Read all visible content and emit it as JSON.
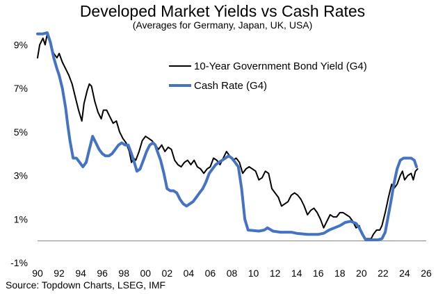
{
  "chart_data": {
    "type": "line",
    "title": "Developed Market Yields vs Cash Rates",
    "subtitle": "(Averages for Germany, Japan, UK, USA)",
    "source": "Source: Topdown Charts, LSEG, IMF",
    "xlabel": "",
    "ylabel": "",
    "xlim": [
      1990,
      2026
    ],
    "ylim": [
      -1,
      10
    ],
    "y_ticks": [
      {
        "value": -1,
        "label": "-1%"
      },
      {
        "value": 1,
        "label": "1%"
      },
      {
        "value": 3,
        "label": "3%"
      },
      {
        "value": 5,
        "label": "5%"
      },
      {
        "value": 7,
        "label": "7%"
      },
      {
        "value": 9,
        "label": "9%"
      }
    ],
    "x_ticks": [
      {
        "value": 1990,
        "label": "90"
      },
      {
        "value": 1992,
        "label": "92"
      },
      {
        "value": 1994,
        "label": "94"
      },
      {
        "value": 1996,
        "label": "96"
      },
      {
        "value": 1998,
        "label": "98"
      },
      {
        "value": 2000,
        "label": "00"
      },
      {
        "value": 2002,
        "label": "02"
      },
      {
        "value": 2004,
        "label": "04"
      },
      {
        "value": 2006,
        "label": "06"
      },
      {
        "value": 2008,
        "label": "08"
      },
      {
        "value": 2010,
        "label": "10"
      },
      {
        "value": 2012,
        "label": "12"
      },
      {
        "value": 2014,
        "label": "14"
      },
      {
        "value": 2016,
        "label": "16"
      },
      {
        "value": 2018,
        "label": "18"
      },
      {
        "value": 2020,
        "label": "20"
      },
      {
        "value": 2022,
        "label": "22"
      },
      {
        "value": 2024,
        "label": "24"
      },
      {
        "value": 2026,
        "label": "26"
      }
    ],
    "x_axis_at": 0,
    "legend_position": "upper-center",
    "series": [
      {
        "name": "10-Year Government Bond Yield (G4)",
        "color": "#000000",
        "width": 2,
        "points": [
          [
            1990.0,
            8.4
          ],
          [
            1990.2,
            9.0
          ],
          [
            1990.5,
            9.3
          ],
          [
            1990.7,
            9.0
          ],
          [
            1990.9,
            9.5
          ],
          [
            1991.2,
            9.0
          ],
          [
            1991.5,
            8.6
          ],
          [
            1991.8,
            8.4
          ],
          [
            1992.0,
            8.6
          ],
          [
            1992.3,
            8.2
          ],
          [
            1992.6,
            7.9
          ],
          [
            1992.9,
            7.6
          ],
          [
            1993.2,
            7.2
          ],
          [
            1993.5,
            6.6
          ],
          [
            1993.8,
            6.0
          ],
          [
            1994.1,
            5.5
          ],
          [
            1994.3,
            6.3
          ],
          [
            1994.6,
            6.9
          ],
          [
            1994.8,
            7.2
          ],
          [
            1995.0,
            7.1
          ],
          [
            1995.3,
            6.4
          ],
          [
            1995.6,
            5.9
          ],
          [
            1995.9,
            5.6
          ],
          [
            1996.1,
            6.0
          ],
          [
            1996.4,
            6.0
          ],
          [
            1996.7,
            5.7
          ],
          [
            1997.0,
            5.4
          ],
          [
            1997.3,
            5.5
          ],
          [
            1997.6,
            5.0
          ],
          [
            1997.9,
            4.7
          ],
          [
            1998.2,
            4.5
          ],
          [
            1998.5,
            4.1
          ],
          [
            1998.7,
            3.6
          ],
          [
            1998.9,
            3.8
          ],
          [
            1999.1,
            3.7
          ],
          [
            1999.4,
            4.1
          ],
          [
            1999.7,
            4.6
          ],
          [
            2000.0,
            4.8
          ],
          [
            2000.3,
            4.7
          ],
          [
            2000.6,
            4.6
          ],
          [
            2000.9,
            4.4
          ],
          [
            2001.2,
            4.2
          ],
          [
            2001.5,
            4.4
          ],
          [
            2001.8,
            4.1
          ],
          [
            2002.1,
            4.3
          ],
          [
            2002.4,
            4.2
          ],
          [
            2002.7,
            3.7
          ],
          [
            2003.0,
            3.5
          ],
          [
            2003.3,
            3.4
          ],
          [
            2003.6,
            3.6
          ],
          [
            2003.9,
            3.7
          ],
          [
            2004.2,
            3.5
          ],
          [
            2004.5,
            3.7
          ],
          [
            2004.8,
            3.4
          ],
          [
            2005.1,
            3.3
          ],
          [
            2005.4,
            3.1
          ],
          [
            2005.7,
            3.3
          ],
          [
            2006.0,
            3.4
          ],
          [
            2006.3,
            3.8
          ],
          [
            2006.6,
            3.7
          ],
          [
            2006.9,
            3.5
          ],
          [
            2007.2,
            3.8
          ],
          [
            2007.5,
            4.1
          ],
          [
            2007.8,
            3.9
          ],
          [
            2008.1,
            3.7
          ],
          [
            2008.4,
            3.8
          ],
          [
            2008.7,
            3.6
          ],
          [
            2009.0,
            3.1
          ],
          [
            2009.3,
            3.3
          ],
          [
            2009.6,
            3.4
          ],
          [
            2009.9,
            3.3
          ],
          [
            2010.2,
            3.2
          ],
          [
            2010.5,
            2.8
          ],
          [
            2010.8,
            2.9
          ],
          [
            2011.1,
            3.2
          ],
          [
            2011.4,
            3.1
          ],
          [
            2011.7,
            2.4
          ],
          [
            2012.0,
            2.2
          ],
          [
            2012.3,
            2.0
          ],
          [
            2012.6,
            1.6
          ],
          [
            2012.9,
            1.7
          ],
          [
            2013.2,
            1.8
          ],
          [
            2013.5,
            2.1
          ],
          [
            2013.8,
            2.2
          ],
          [
            2014.1,
            2.1
          ],
          [
            2014.4,
            1.9
          ],
          [
            2014.7,
            1.6
          ],
          [
            2015.0,
            1.2
          ],
          [
            2015.3,
            1.4
          ],
          [
            2015.6,
            1.5
          ],
          [
            2015.9,
            1.3
          ],
          [
            2016.2,
            1.0
          ],
          [
            2016.5,
            0.6
          ],
          [
            2016.8,
            0.9
          ],
          [
            2017.1,
            1.2
          ],
          [
            2017.4,
            1.1
          ],
          [
            2017.7,
            1.1
          ],
          [
            2018.0,
            1.3
          ],
          [
            2018.3,
            1.3
          ],
          [
            2018.6,
            1.2
          ],
          [
            2018.9,
            1.1
          ],
          [
            2019.2,
            0.9
          ],
          [
            2019.5,
            0.6
          ],
          [
            2019.8,
            0.7
          ],
          [
            2020.0,
            0.4
          ],
          [
            2020.3,
            0.1
          ],
          [
            2020.6,
            0.1
          ],
          [
            2020.9,
            0.1
          ],
          [
            2021.1,
            0.3
          ],
          [
            2021.4,
            0.5
          ],
          [
            2021.7,
            0.5
          ],
          [
            2021.9,
            0.7
          ],
          [
            2022.2,
            1.3
          ],
          [
            2022.5,
            2.0
          ],
          [
            2022.8,
            2.6
          ],
          [
            2023.0,
            2.4
          ],
          [
            2023.3,
            2.6
          ],
          [
            2023.6,
            3.0
          ],
          [
            2023.8,
            3.2
          ],
          [
            2024.0,
            2.8
          ],
          [
            2024.3,
            3.0
          ],
          [
            2024.6,
            3.1
          ],
          [
            2024.8,
            2.8
          ],
          [
            2025.0,
            3.2
          ],
          [
            2025.2,
            3.3
          ]
        ]
      },
      {
        "name": "Cash Rate (G4)",
        "color": "#4472c4",
        "width": 4,
        "points": [
          [
            1990.0,
            9.5
          ],
          [
            1990.5,
            9.5
          ],
          [
            1990.9,
            9.55
          ],
          [
            1991.2,
            9.1
          ],
          [
            1991.5,
            8.4
          ],
          [
            1991.8,
            7.9
          ],
          [
            1992.0,
            7.6
          ],
          [
            1992.3,
            7.0
          ],
          [
            1992.6,
            6.1
          ],
          [
            1992.8,
            5.3
          ],
          [
            1993.0,
            4.6
          ],
          [
            1993.3,
            3.8
          ],
          [
            1993.6,
            3.8
          ],
          [
            1993.9,
            3.6
          ],
          [
            1994.2,
            3.4
          ],
          [
            1994.5,
            3.6
          ],
          [
            1994.8,
            4.2
          ],
          [
            1995.1,
            4.8
          ],
          [
            1995.4,
            4.5
          ],
          [
            1995.7,
            4.2
          ],
          [
            1996.0,
            4.0
          ],
          [
            1996.3,
            3.9
          ],
          [
            1996.6,
            3.9
          ],
          [
            1996.9,
            4.0
          ],
          [
            1997.2,
            4.2
          ],
          [
            1997.5,
            4.4
          ],
          [
            1997.8,
            4.5
          ],
          [
            1998.1,
            4.4
          ],
          [
            1998.4,
            4.4
          ],
          [
            1998.7,
            4.0
          ],
          [
            1998.9,
            3.7
          ],
          [
            1999.2,
            3.2
          ],
          [
            1999.5,
            3.3
          ],
          [
            1999.8,
            3.7
          ],
          [
            2000.1,
            4.1
          ],
          [
            2000.4,
            4.4
          ],
          [
            2000.7,
            4.5
          ],
          [
            2000.9,
            4.4
          ],
          [
            2001.1,
            4.1
          ],
          [
            2001.4,
            3.7
          ],
          [
            2001.7,
            3.1
          ],
          [
            2002.0,
            2.4
          ],
          [
            2002.3,
            2.3
          ],
          [
            2002.6,
            2.3
          ],
          [
            2002.9,
            2.2
          ],
          [
            2003.2,
            1.9
          ],
          [
            2003.5,
            1.7
          ],
          [
            2003.8,
            1.6
          ],
          [
            2004.1,
            1.7
          ],
          [
            2004.4,
            1.8
          ],
          [
            2004.7,
            2.0
          ],
          [
            2005.0,
            2.2
          ],
          [
            2005.3,
            2.4
          ],
          [
            2005.6,
            2.7
          ],
          [
            2005.9,
            3.1
          ],
          [
            2006.2,
            3.3
          ],
          [
            2006.5,
            3.5
          ],
          [
            2006.8,
            3.6
          ],
          [
            2007.1,
            3.7
          ],
          [
            2007.4,
            3.8
          ],
          [
            2007.7,
            3.9
          ],
          [
            2008.0,
            3.8
          ],
          [
            2008.3,
            3.6
          ],
          [
            2008.6,
            3.4
          ],
          [
            2008.9,
            2.4
          ],
          [
            2009.2,
            1.0
          ],
          [
            2009.5,
            0.5
          ],
          [
            2010.5,
            0.45
          ],
          [
            2011.0,
            0.5
          ],
          [
            2011.3,
            0.6
          ],
          [
            2011.8,
            0.45
          ],
          [
            2012.5,
            0.4
          ],
          [
            2013.5,
            0.4
          ],
          [
            2014.0,
            0.35
          ],
          [
            2015.0,
            0.3
          ],
          [
            2016.0,
            0.3
          ],
          [
            2016.5,
            0.35
          ],
          [
            2017.0,
            0.5
          ],
          [
            2017.5,
            0.6
          ],
          [
            2018.0,
            0.7
          ],
          [
            2018.5,
            0.85
          ],
          [
            2019.0,
            0.9
          ],
          [
            2019.5,
            0.8
          ],
          [
            2019.8,
            0.6
          ],
          [
            2020.1,
            0.3
          ],
          [
            2020.4,
            0.05
          ],
          [
            2021.0,
            0.05
          ],
          [
            2021.5,
            0.05
          ],
          [
            2021.9,
            0.1
          ],
          [
            2022.2,
            0.4
          ],
          [
            2022.5,
            1.2
          ],
          [
            2022.8,
            2.0
          ],
          [
            2023.0,
            2.6
          ],
          [
            2023.3,
            3.3
          ],
          [
            2023.6,
            3.7
          ],
          [
            2023.9,
            3.8
          ],
          [
            2024.3,
            3.8
          ],
          [
            2024.6,
            3.8
          ],
          [
            2024.9,
            3.7
          ],
          [
            2025.1,
            3.4
          ]
        ]
      }
    ]
  }
}
